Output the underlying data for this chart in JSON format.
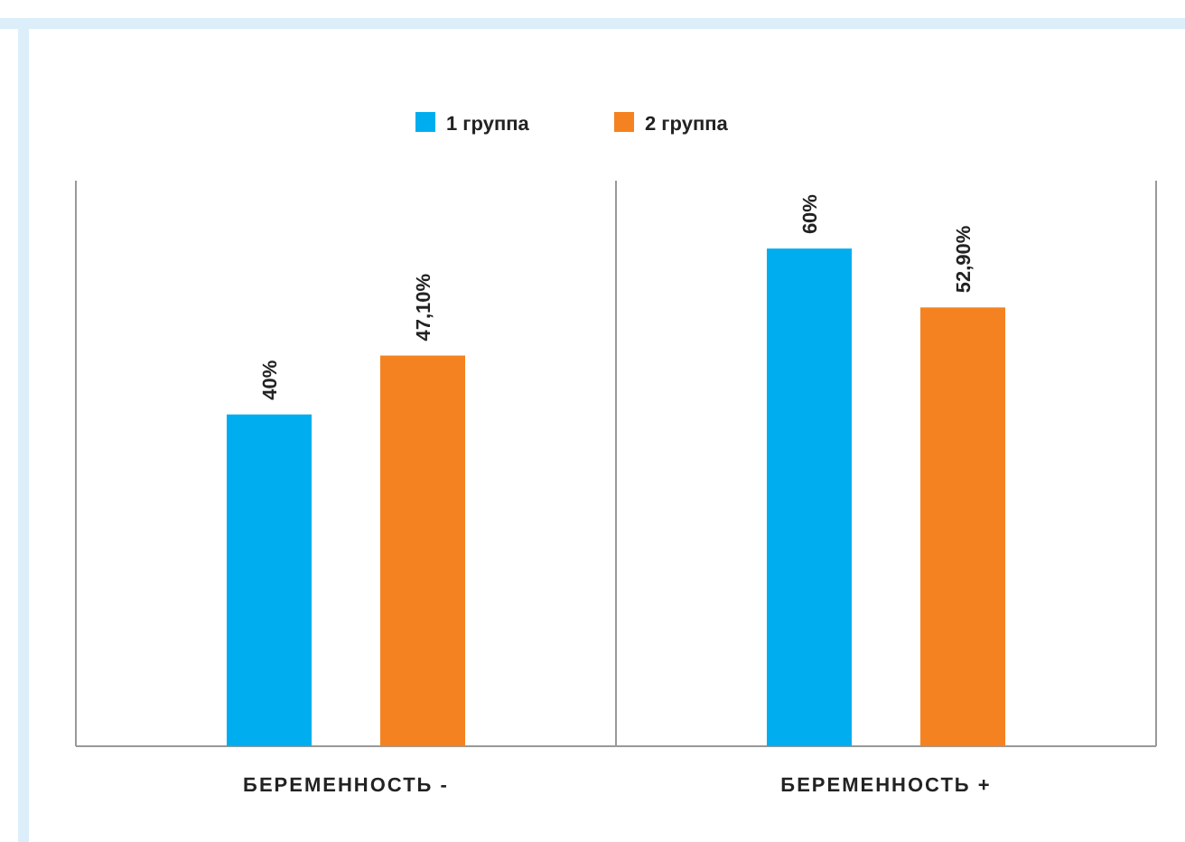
{
  "chart_data": {
    "type": "bar",
    "categories": [
      "БЕРЕМЕННОСТЬ -",
      "БЕРЕМЕННОСТЬ +"
    ],
    "series": [
      {
        "name": "1 группа",
        "color": "#00aeef",
        "values": [
          40,
          60
        ],
        "value_labels": [
          "40%",
          "60%"
        ]
      },
      {
        "name": "2 группа",
        "color": "#f58220",
        "values": [
          47.1,
          52.9
        ],
        "value_labels": [
          "47,10%",
          "52,90%"
        ]
      }
    ],
    "legend": "top",
    "grid": false
  }
}
